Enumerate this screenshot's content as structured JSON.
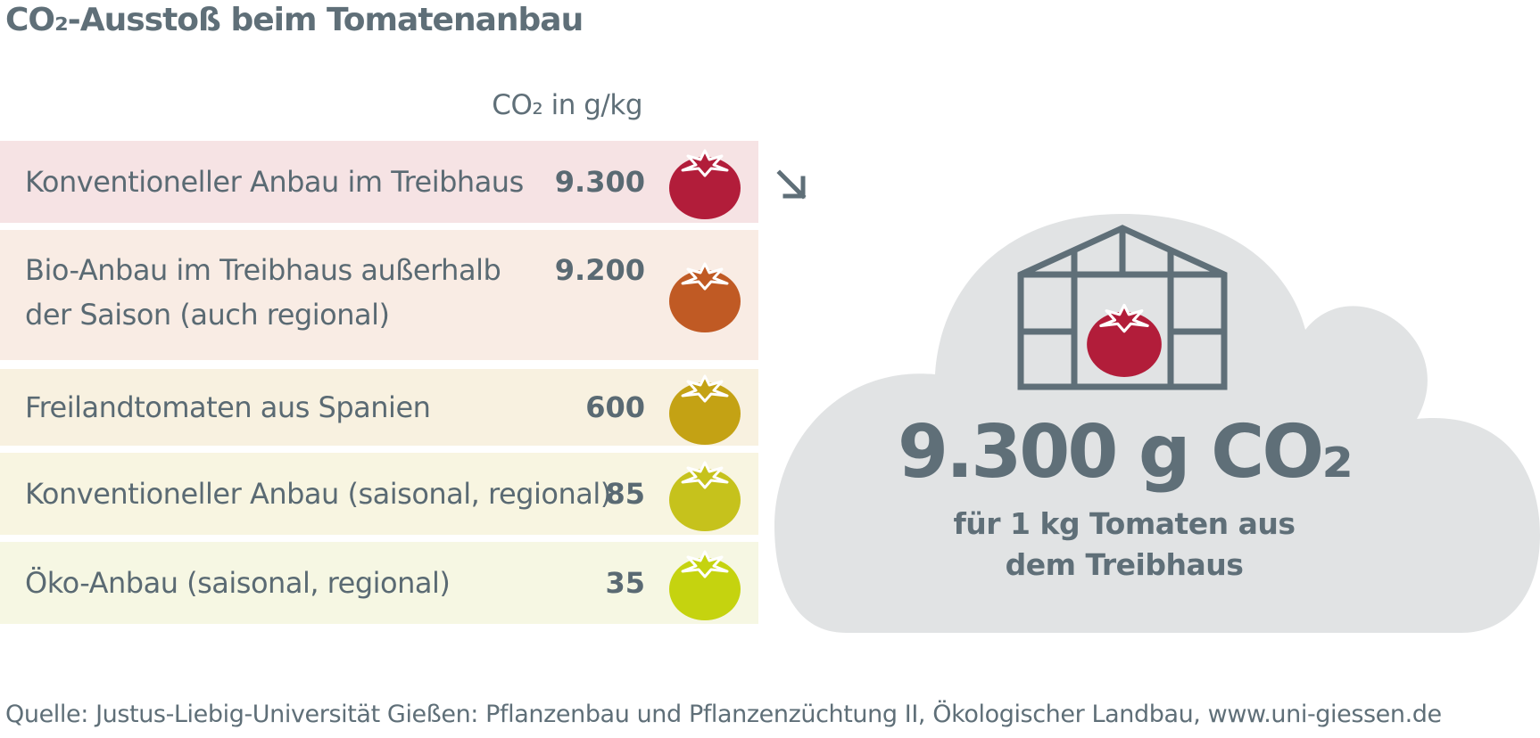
{
  "title": "CO₂-Ausstoß beim Tomatenanbau",
  "unit_label": "CO₂ in g/kg",
  "chart_data": {
    "type": "table",
    "title": "CO₂-Ausstoß beim Tomatenanbau",
    "value_header": "CO₂ in g/kg",
    "rows": [
      {
        "label_lines": [
          "Konventioneller Anbau im Treibhaus"
        ],
        "value_text": "9.300",
        "value": 9300,
        "color": "#b21d3a",
        "bg": "#f6e3e4"
      },
      {
        "label_lines": [
          "Bio-Anbau im Treibhaus außerhalb",
          "der Saison (auch regional)"
        ],
        "value_text": "9.200",
        "value": 9200,
        "color": "#c05a24",
        "bg": "#f9ece4"
      },
      {
        "label_lines": [
          "Freilandtomaten aus Spanien"
        ],
        "value_text": "600",
        "value": 600,
        "color": "#c4a214",
        "bg": "#f8f1e0"
      },
      {
        "label_lines": [
          "Konventioneller Anbau (saisonal, regional)"
        ],
        "value_text": "85",
        "value": 85,
        "color": "#c6c21c",
        "bg": "#f8f5e1"
      },
      {
        "label_lines": [
          "Öko-Anbau (saisonal, regional)"
        ],
        "value_text": "35",
        "value": 35,
        "color": "#c5d30f",
        "bg": "#f6f7e3"
      }
    ]
  },
  "highlight": {
    "number": "9.300 g CO₂",
    "line1": "für 1 kg Tomaten aus",
    "line2": "dem Treibhaus",
    "tomato_color": "#b21d3a",
    "cloud_color": "#e1e3e4",
    "greenhouse_color": "#5f6f78"
  },
  "source": "Quelle: Justus-Liebig-Universität Gießen: Pflanzenbau und Pflanzenzüchtung II, Ökologischer Landbau, www.uni-giessen.de"
}
